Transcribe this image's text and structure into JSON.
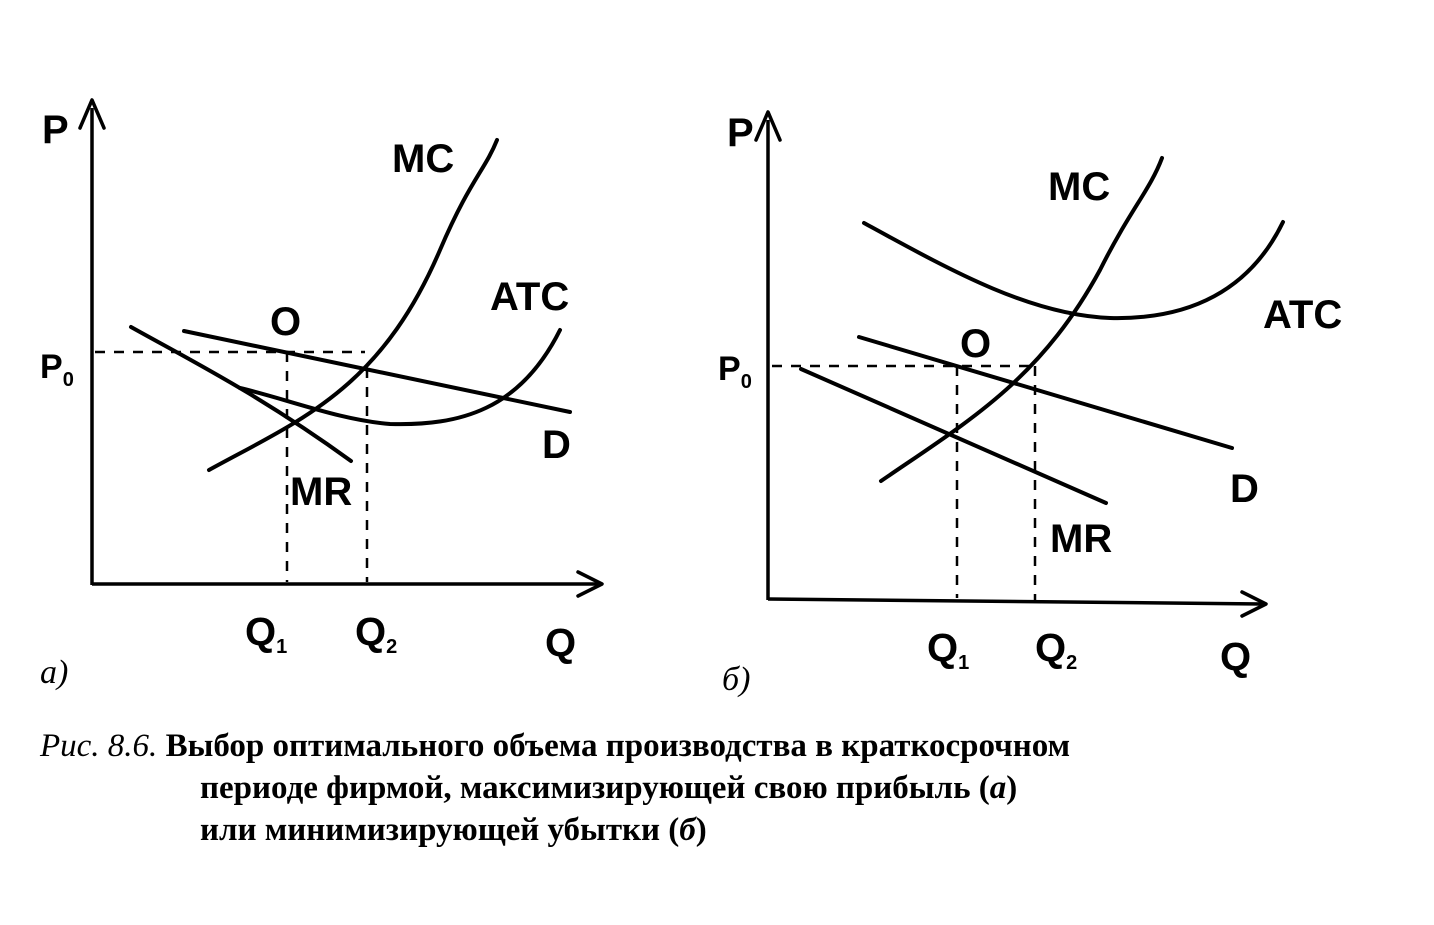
{
  "panels": [
    {
      "tag": "а)",
      "y_axis": "P",
      "x_axis": "Q",
      "price": "P",
      "price_sub": "0",
      "q1": "Q",
      "q1_sub": "1",
      "q2": "Q",
      "q2_sub": "2",
      "point": "O",
      "curves": {
        "mc": "MC",
        "atc": "ATC",
        "d": "D",
        "mr": "MR"
      }
    },
    {
      "tag": "б)",
      "y_axis": "P",
      "x_axis": "Q",
      "price": "P",
      "price_sub": "0",
      "q1": "Q",
      "q1_sub": "1",
      "q2": "Q",
      "q2_sub": "2",
      "point": "O",
      "curves": {
        "mc": "MC",
        "atc": "ATC",
        "d": "D",
        "mr": "MR"
      }
    }
  ],
  "caption": {
    "ref": "Рис. 8.6.",
    "line1": "Выбор оптимального объема производства в краткосрочном",
    "line2_a": "периоде фирмой, максимизирующей свою прибыль (",
    "line2_i": "а",
    "line2_b": ")",
    "line3_a": "или минимизирующей убытки (",
    "line3_i": "б",
    "line3_b": ")"
  }
}
